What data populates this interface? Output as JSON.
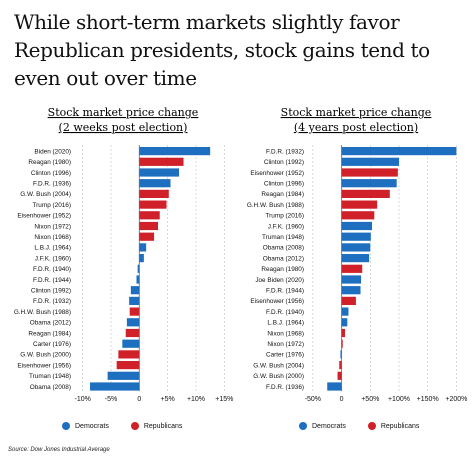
{
  "title": "While short-term markets slightly favor Republican presidents, stock gains tend to even out over time",
  "source": "Source: Dow Jones Industrial Average",
  "colors": {
    "democrats": "#1e6fc0",
    "republicans": "#d0202a",
    "zero_line": "#7a8590"
  },
  "legend": {
    "democrats": "Democrats",
    "republicans": "Republicans"
  },
  "chart_data": [
    {
      "type": "bar",
      "orientation": "horizontal",
      "title_line1": "Stock market price change",
      "title_line2": "(2 weeks post election)",
      "xlim": [
        -11,
        16
      ],
      "ticks": [
        {
          "label": "-10%",
          "value": -10
        },
        {
          "label": "-5%",
          "value": -5
        },
        {
          "label": "0",
          "value": 0
        },
        {
          "label": "+5%",
          "value": 5
        },
        {
          "label": "+10%",
          "value": 10
        },
        {
          "label": "+15%",
          "value": 15
        }
      ],
      "bars": [
        {
          "label": "Biden (2020)",
          "value": 12.5,
          "party": "democrats"
        },
        {
          "label": "Reagan (1980)",
          "value": 7.8,
          "party": "republicans"
        },
        {
          "label": "Clinton (1996)",
          "value": 7.0,
          "party": "democrats"
        },
        {
          "label": "F.D.R. (1936)",
          "value": 5.5,
          "party": "democrats"
        },
        {
          "label": "G.W. Bush (2004)",
          "value": 5.2,
          "party": "republicans"
        },
        {
          "label": "Trump (2016)",
          "value": 4.8,
          "party": "republicans"
        },
        {
          "label": "Eisenhower (1952)",
          "value": 3.6,
          "party": "republicans"
        },
        {
          "label": "Nixon (1972)",
          "value": 3.3,
          "party": "republicans"
        },
        {
          "label": "Nixon (1968)",
          "value": 2.6,
          "party": "republicans"
        },
        {
          "label": "L.B.J. (1964)",
          "value": 1.2,
          "party": "democrats"
        },
        {
          "label": "J.F.K. (1960)",
          "value": 0.8,
          "party": "democrats"
        },
        {
          "label": "F.D.R. (1940)",
          "value": -0.3,
          "party": "democrats"
        },
        {
          "label": "F.D.R. (1944)",
          "value": -0.5,
          "party": "democrats"
        },
        {
          "label": "Clinton (1992)",
          "value": -1.5,
          "party": "democrats"
        },
        {
          "label": "F.D.R. (1932)",
          "value": -1.8,
          "party": "democrats"
        },
        {
          "label": "G.H.W. Bush (1988)",
          "value": -1.7,
          "party": "republicans"
        },
        {
          "label": "Obama (2012)",
          "value": -2.2,
          "party": "democrats"
        },
        {
          "label": "Reagan (1984)",
          "value": -2.4,
          "party": "republicans"
        },
        {
          "label": "Carter (1976)",
          "value": -3.0,
          "party": "democrats"
        },
        {
          "label": "G.W. Bush (2000)",
          "value": -3.7,
          "party": "republicans"
        },
        {
          "label": "Eisenhower (1956)",
          "value": -4.0,
          "party": "republicans"
        },
        {
          "label": "Truman (1948)",
          "value": -5.6,
          "party": "democrats"
        },
        {
          "label": "Obama (2008)",
          "value": -8.7,
          "party": "democrats"
        }
      ]
    },
    {
      "type": "bar",
      "orientation": "horizontal",
      "title_line1": "Stock market price change",
      "title_line2": "(4 years post election)",
      "xlim": [
        -55,
        215
      ],
      "ticks": [
        {
          "label": "-50%",
          "value": -50
        },
        {
          "label": "0",
          "value": 0
        },
        {
          "label": "+50%",
          "value": 50
        },
        {
          "label": "+100%",
          "value": 100
        },
        {
          "label": "+150%",
          "value": 150
        },
        {
          "label": "+200%",
          "value": 200
        }
      ],
      "bars": [
        {
          "label": "F.D.R. (1932)",
          "value": 200,
          "party": "democrats"
        },
        {
          "label": "Clinton (1992)",
          "value": 100,
          "party": "democrats"
        },
        {
          "label": "Eisenhower (1952)",
          "value": 98,
          "party": "republicans"
        },
        {
          "label": "Clinton (1996)",
          "value": 96,
          "party": "democrats"
        },
        {
          "label": "Reagan (1984)",
          "value": 84,
          "party": "republicans"
        },
        {
          "label": "G.H.W. Bush (1988)",
          "value": 62,
          "party": "republicans"
        },
        {
          "label": "Trump (2016)",
          "value": 57,
          "party": "republicans"
        },
        {
          "label": "J.F.K. (1960)",
          "value": 53,
          "party": "democrats"
        },
        {
          "label": "Truman (1948)",
          "value": 51,
          "party": "democrats"
        },
        {
          "label": "Obama (2008)",
          "value": 50,
          "party": "democrats"
        },
        {
          "label": "Obama (2012)",
          "value": 48,
          "party": "democrats"
        },
        {
          "label": "Reagan (1980)",
          "value": 36,
          "party": "republicans"
        },
        {
          "label": "Joe Biden (2020)",
          "value": 34,
          "party": "democrats"
        },
        {
          "label": "F.D.R. (1944)",
          "value": 33,
          "party": "democrats"
        },
        {
          "label": "Eisenhower (1956)",
          "value": 25,
          "party": "republicans"
        },
        {
          "label": "F.D.R. (1940)",
          "value": 12,
          "party": "democrats"
        },
        {
          "label": "L.B.J. (1964)",
          "value": 10,
          "party": "democrats"
        },
        {
          "label": "Nixon (1968)",
          "value": 6,
          "party": "republicans"
        },
        {
          "label": "Nixon (1972)",
          "value": 2,
          "party": "republicans"
        },
        {
          "label": "Carter (1976)",
          "value": -2,
          "party": "democrats"
        },
        {
          "label": "G.W. Bush (2004)",
          "value": -4,
          "party": "republicans"
        },
        {
          "label": "G.W. Bush (2000)",
          "value": -7,
          "party": "republicans"
        },
        {
          "label": "F.D.R. (1936)",
          "value": -25,
          "party": "democrats"
        }
      ]
    }
  ]
}
